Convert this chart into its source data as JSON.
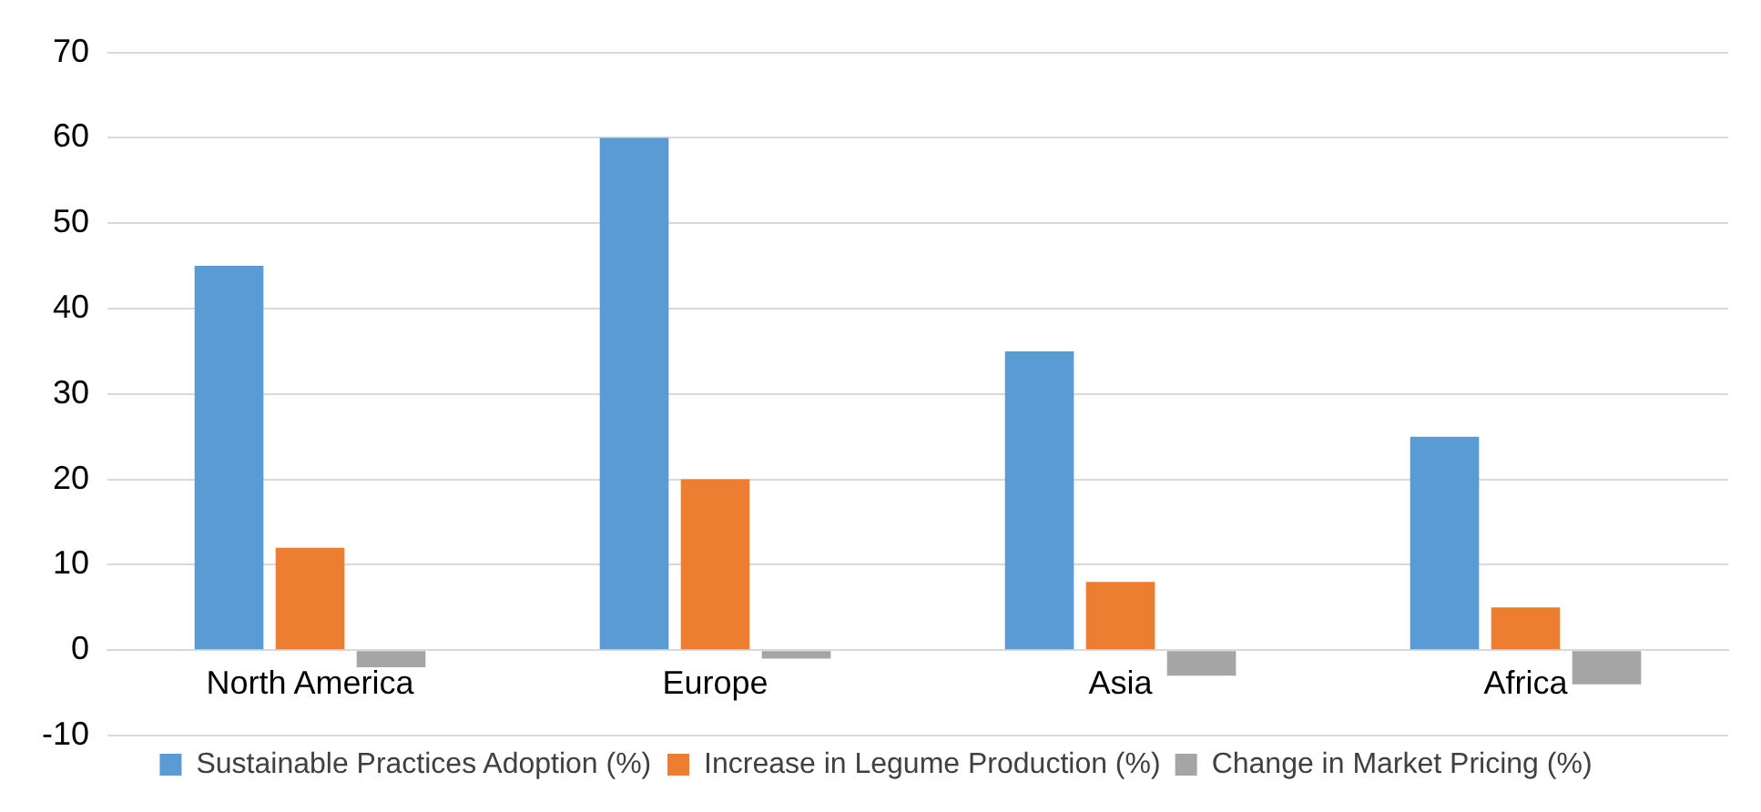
{
  "chart_data": {
    "type": "bar",
    "categories": [
      "North America",
      "Europe",
      "Asia",
      "Africa"
    ],
    "series": [
      {
        "name": "Sustainable Practices Adoption (%)",
        "color": "#5b9bd5",
        "values": [
          45,
          60,
          35,
          25
        ]
      },
      {
        "name": "Increase in Legume Production (%)",
        "color": "#ed7d31",
        "values": [
          12,
          20,
          8,
          5
        ]
      },
      {
        "name": "Change in Market Pricing (%)",
        "color": "#a5a5a5",
        "values": [
          -2,
          -1,
          -3,
          -4
        ]
      }
    ],
    "ylim": [
      -10,
      70
    ],
    "yticks": [
      -10,
      0,
      10,
      20,
      30,
      40,
      50,
      60,
      70
    ],
    "grid": "y",
    "legend": "bottom"
  }
}
